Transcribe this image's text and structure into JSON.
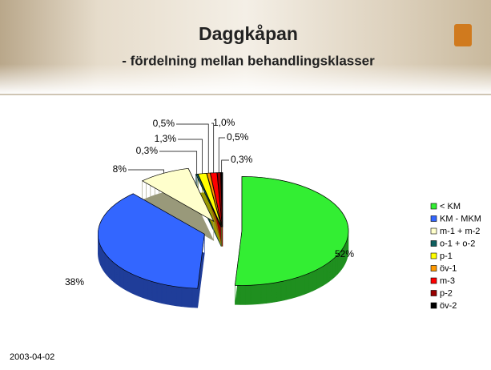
{
  "chart_data": {
    "type": "pie",
    "title": "Daggkåpan",
    "subtitle": "- fördelning mellan behandlingsklasser",
    "categories": [
      "< KM",
      "KM - MKM",
      "m-1 + m-2",
      "o-1 + o-2",
      "p-1",
      "öv-1",
      "m-3",
      "p-2",
      "öv-2"
    ],
    "values": [
      52,
      38,
      8,
      0.3,
      1.3,
      0.5,
      1.0,
      0.5,
      0.3
    ],
    "value_labels": [
      "52%",
      "38%",
      "8%",
      "0,3%",
      "1,3%",
      "0,5%",
      "1,0%",
      "0,5%",
      "0,3%"
    ],
    "colors": [
      "#33ee33",
      "#3366ff",
      "#ffffcc",
      "#0f5f5f",
      "#ffff00",
      "#ff9900",
      "#ff0000",
      "#990000",
      "#000000"
    ],
    "legend": "right"
  },
  "footer": {
    "date": "2003-04-02"
  }
}
